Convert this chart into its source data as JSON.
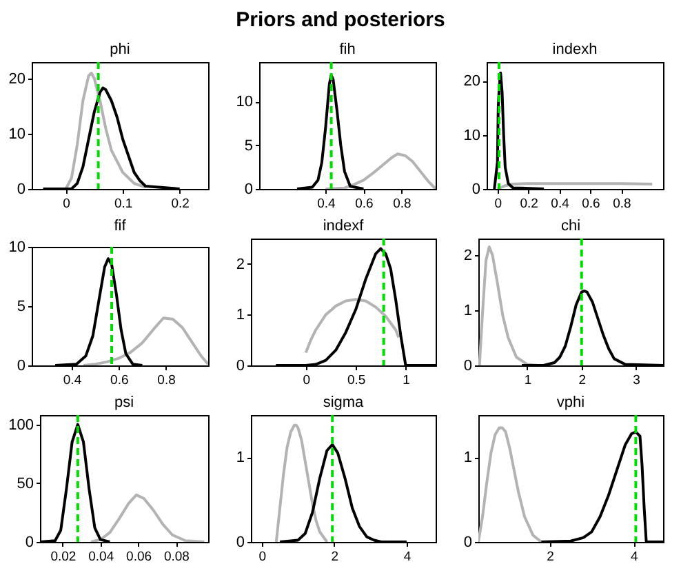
{
  "chart_data": [
    {
      "type": "other",
      "title": "Priors and posteriors"
    },
    {
      "type": "line",
      "title": "phi",
      "xlim": [
        -0.06,
        0.25
      ],
      "xticks": [
        0,
        0.1,
        0.2
      ],
      "ylim": [
        0,
        23
      ],
      "yticks": [
        0,
        10,
        20
      ],
      "series": [
        {
          "color": "#b3b3b3",
          "x": [
            0,
            0.01,
            0.02,
            0.03,
            0.04,
            0.045,
            0.05,
            0.06,
            0.07,
            0.08,
            0.1,
            0.12,
            0.14
          ],
          "values": [
            0,
            2,
            8,
            16,
            20.5,
            21,
            20,
            16,
            11,
            7,
            3,
            1,
            0.3
          ]
        },
        {
          "color": "#000000",
          "x": [
            -0.04,
            0.01,
            0.02,
            0.03,
            0.04,
            0.05,
            0.06,
            0.065,
            0.07,
            0.08,
            0.09,
            0.1,
            0.11,
            0.12,
            0.13,
            0.14,
            0.2
          ],
          "values": [
            0,
            0,
            1,
            4,
            9,
            14,
            17.5,
            18.3,
            18,
            16,
            13,
            9,
            6,
            3,
            1.5,
            0.5,
            0
          ]
        }
      ],
      "ref_lines": [
        {
          "axis": "x",
          "value": 0.057,
          "color": "#00dd00",
          "line_style": "dashed"
        }
      ]
    },
    {
      "type": "line",
      "title": "fih",
      "xlim": [
        0.05,
        0.98
      ],
      "xticks": [
        0.4,
        0.6,
        0.8
      ],
      "ylim": [
        0,
        14.5
      ],
      "yticks": [
        0,
        5,
        10
      ],
      "series": [
        {
          "color": "#b3b3b3",
          "x": [
            0.4,
            0.5,
            0.55,
            0.6,
            0.65,
            0.7,
            0.75,
            0.78,
            0.82,
            0.86,
            0.9,
            0.94,
            0.98
          ],
          "values": [
            0,
            0.1,
            0.5,
            1,
            1.8,
            2.7,
            3.6,
            4,
            3.8,
            3.1,
            2,
            0.9,
            0
          ]
        },
        {
          "color": "#000000",
          "x": [
            0.25,
            0.33,
            0.36,
            0.38,
            0.4,
            0.42,
            0.43,
            0.44,
            0.46,
            0.48,
            0.5,
            0.53,
            0.6
          ],
          "values": [
            0,
            0.2,
            1,
            3,
            7,
            12,
            13,
            12.5,
            9,
            5,
            2,
            0.3,
            0
          ]
        }
      ],
      "ref_lines": [
        {
          "axis": "x",
          "value": 0.43,
          "color": "#00dd00",
          "line_style": "dashed"
        }
      ]
    },
    {
      "type": "line",
      "title": "indexh",
      "xlim": [
        -0.07,
        1.07
      ],
      "xticks": [
        0,
        0.2,
        0.4,
        0.6,
        0.8
      ],
      "ylim": [
        0,
        23.5
      ],
      "yticks": [
        0,
        10,
        20
      ],
      "series": [
        {
          "color": "#b3b3b3",
          "x": [
            0,
            0.05,
            0.1,
            0.2,
            0.4,
            0.6,
            0.8,
            1
          ],
          "values": [
            0,
            0.6,
            0.9,
            1,
            1,
            1,
            1,
            0.9
          ]
        },
        {
          "color": "#000000",
          "x": [
            -0.02,
            0,
            0.005,
            0.01,
            0.015,
            0.02,
            0.03,
            0.04,
            0.05,
            0.07,
            0.1,
            0.3
          ],
          "values": [
            0,
            5,
            15,
            18,
            20,
            21.5,
            18,
            10,
            4,
            1,
            0.2,
            0
          ]
        }
      ],
      "ref_lines": [
        {
          "axis": "x",
          "value": 0.01,
          "color": "#00dd00",
          "line_style": "dashed"
        }
      ]
    },
    {
      "type": "line",
      "title": "fif",
      "xlim": [
        0.23,
        0.98
      ],
      "xticks": [
        0.4,
        0.6,
        0.8
      ],
      "ylim": [
        0,
        10
      ],
      "yticks": [
        0,
        5,
        10
      ],
      "series": [
        {
          "color": "#b3b3b3",
          "x": [
            0.45,
            0.5,
            0.55,
            0.6,
            0.65,
            0.7,
            0.75,
            0.79,
            0.83,
            0.87,
            0.91,
            0.95,
            0.98
          ],
          "values": [
            0,
            0.1,
            0.3,
            0.6,
            1.1,
            1.9,
            3.1,
            4,
            3.9,
            3.2,
            2,
            0.8,
            0.1
          ]
        },
        {
          "color": "#000000",
          "x": [
            0.33,
            0.42,
            0.46,
            0.49,
            0.52,
            0.54,
            0.555,
            0.57,
            0.59,
            0.61,
            0.63,
            0.66,
            0.7
          ],
          "values": [
            0,
            0.1,
            0.8,
            2.5,
            6,
            8.3,
            9,
            8.5,
            6,
            3,
            1,
            0.1,
            0
          ]
        }
      ],
      "ref_lines": [
        {
          "axis": "x",
          "value": 0.57,
          "color": "#00dd00",
          "line_style": "dashed"
        }
      ]
    },
    {
      "type": "line",
      "title": "indexf",
      "xlim": [
        -0.55,
        1.3
      ],
      "xticks": [
        0,
        0.5,
        1
      ],
      "ylim": [
        0,
        2.5
      ],
      "yticks": [
        0,
        1,
        2
      ],
      "series": [
        {
          "color": "#b3b3b3",
          "x": [
            0,
            0.05,
            0.1,
            0.2,
            0.3,
            0.4,
            0.5,
            0.6,
            0.7,
            0.8,
            0.9,
            0.93
          ],
          "values": [
            0.25,
            0.5,
            0.7,
            1,
            1.17,
            1.27,
            1.3,
            1.27,
            1.15,
            0.97,
            0.7,
            0.55
          ]
        },
        {
          "color": "#000000",
          "x": [
            -0.3,
            0,
            0.1,
            0.2,
            0.3,
            0.4,
            0.5,
            0.6,
            0.7,
            0.75,
            0.8,
            0.85,
            0.9,
            0.95,
            1,
            1.3
          ],
          "values": [
            0,
            0,
            0.02,
            0.1,
            0.3,
            0.65,
            1.1,
            1.7,
            2.2,
            2.3,
            2.2,
            1.9,
            1.3,
            0.6,
            0,
            0
          ]
        }
      ],
      "ref_lines": [
        {
          "axis": "x",
          "value": 0.78,
          "color": "#00dd00",
          "line_style": "dashed"
        }
      ]
    },
    {
      "type": "line",
      "title": "chi",
      "xlim": [
        0.1,
        3.5
      ],
      "xticks": [
        1,
        2,
        3
      ],
      "ylim": [
        0,
        2.3
      ],
      "yticks": [
        0,
        1,
        2
      ],
      "series": [
        {
          "color": "#b3b3b3",
          "x": [
            0.12,
            0.18,
            0.24,
            0.3,
            0.36,
            0.45,
            0.55,
            0.65,
            0.8,
            1,
            1.2
          ],
          "values": [
            0,
            1,
            1.9,
            2.15,
            2,
            1.5,
            0.9,
            0.5,
            0.15,
            0.02,
            0
          ]
        },
        {
          "color": "#000000",
          "x": [
            0.9,
            1.3,
            1.5,
            1.6,
            1.7,
            1.8,
            1.9,
            2,
            2.05,
            2.1,
            2.2,
            2.3,
            2.4,
            2.5,
            2.6,
            2.8,
            3.5
          ],
          "values": [
            0,
            0,
            0.05,
            0.15,
            0.35,
            0.7,
            1.1,
            1.33,
            1.35,
            1.33,
            1.15,
            0.85,
            0.55,
            0.3,
            0.12,
            0.02,
            0
          ]
        }
      ],
      "ref_lines": [
        {
          "axis": "x",
          "value": 2,
          "color": "#00dd00",
          "line_style": "dashed"
        }
      ]
    },
    {
      "type": "line",
      "title": "psi",
      "xlim": [
        0.008,
        0.097
      ],
      "xticks": [
        0.02,
        0.04,
        0.06,
        0.08
      ],
      "ylim": [
        0,
        108
      ],
      "yticks": [
        0,
        50,
        100
      ],
      "series": [
        {
          "color": "#b3b3b3",
          "x": [
            0.035,
            0.04,
            0.045,
            0.05,
            0.055,
            0.059,
            0.063,
            0.068,
            0.073,
            0.078,
            0.085,
            0.095
          ],
          "values": [
            0,
            2,
            8,
            20,
            33,
            40,
            37,
            27,
            15,
            6,
            1,
            0
          ]
        },
        {
          "color": "#000000",
          "x": [
            0.008,
            0.016,
            0.019,
            0.022,
            0.025,
            0.028,
            0.031,
            0.034,
            0.037,
            0.04,
            0.045
          ],
          "values": [
            0,
            1,
            10,
            45,
            85,
            100,
            85,
            45,
            12,
            2,
            0
          ]
        }
      ],
      "ref_lines": [
        {
          "axis": "x",
          "value": 0.028,
          "color": "#00dd00",
          "line_style": "dashed"
        }
      ]
    },
    {
      "type": "line",
      "title": "sigma",
      "xlim": [
        -0.3,
        4.8
      ],
      "xticks": [
        0,
        2,
        4
      ],
      "ylim": [
        0,
        1.5
      ],
      "yticks": [
        0,
        1
      ],
      "series": [
        {
          "color": "#b3b3b3",
          "x": [
            0.4,
            0.5,
            0.6,
            0.7,
            0.8,
            0.9,
            0.95,
            1,
            1.1,
            1.2,
            1.3,
            1.4,
            1.5,
            1.6,
            1.8
          ],
          "values": [
            0,
            0.4,
            0.8,
            1.12,
            1.3,
            1.38,
            1.38,
            1.35,
            1.2,
            0.95,
            0.7,
            0.45,
            0.25,
            0.12,
            0
          ]
        },
        {
          "color": "#000000",
          "x": [
            0.5,
            1,
            1.2,
            1.4,
            1.6,
            1.8,
            1.95,
            2.1,
            2.3,
            2.5,
            2.7,
            2.9,
            3.1,
            3.3,
            4
          ],
          "values": [
            0,
            0.02,
            0.1,
            0.35,
            0.75,
            1.08,
            1.15,
            1.05,
            0.75,
            0.4,
            0.18,
            0.06,
            0.02,
            0,
            0
          ]
        }
      ],
      "ref_lines": [
        {
          "axis": "x",
          "value": 1.95,
          "color": "#00dd00",
          "line_style": "dashed"
        }
      ]
    },
    {
      "type": "line",
      "title": "vphi",
      "xlim": [
        0.3,
        4.7
      ],
      "xticks": [
        2,
        4
      ],
      "ylim": [
        0,
        1.5
      ],
      "yticks": [
        0,
        1
      ],
      "series": [
        {
          "color": "#b3b3b3",
          "x": [
            0.3,
            0.4,
            0.5,
            0.6,
            0.7,
            0.8,
            0.87,
            0.95,
            1.05,
            1.15,
            1.25,
            1.4,
            1.6,
            1.8
          ],
          "values": [
            0,
            0.3,
            0.7,
            1.05,
            1.27,
            1.35,
            1.35,
            1.3,
            1.1,
            0.85,
            0.6,
            0.3,
            0.08,
            0
          ]
        },
        {
          "color": "#000000",
          "x": [
            1.8,
            2.5,
            2.8,
            3,
            3.2,
            3.4,
            3.6,
            3.8,
            3.95,
            4.05,
            4.15,
            4.2,
            4.25,
            4.3,
            4.7
          ],
          "values": [
            0,
            0.01,
            0.05,
            0.12,
            0.3,
            0.55,
            0.85,
            1.15,
            1.28,
            1.3,
            1.25,
            0.9,
            0.4,
            0,
            0
          ]
        }
      ],
      "ref_lines": [
        {
          "axis": "x",
          "value": 4.05,
          "color": "#00dd00",
          "line_style": "dashed"
        }
      ]
    }
  ]
}
